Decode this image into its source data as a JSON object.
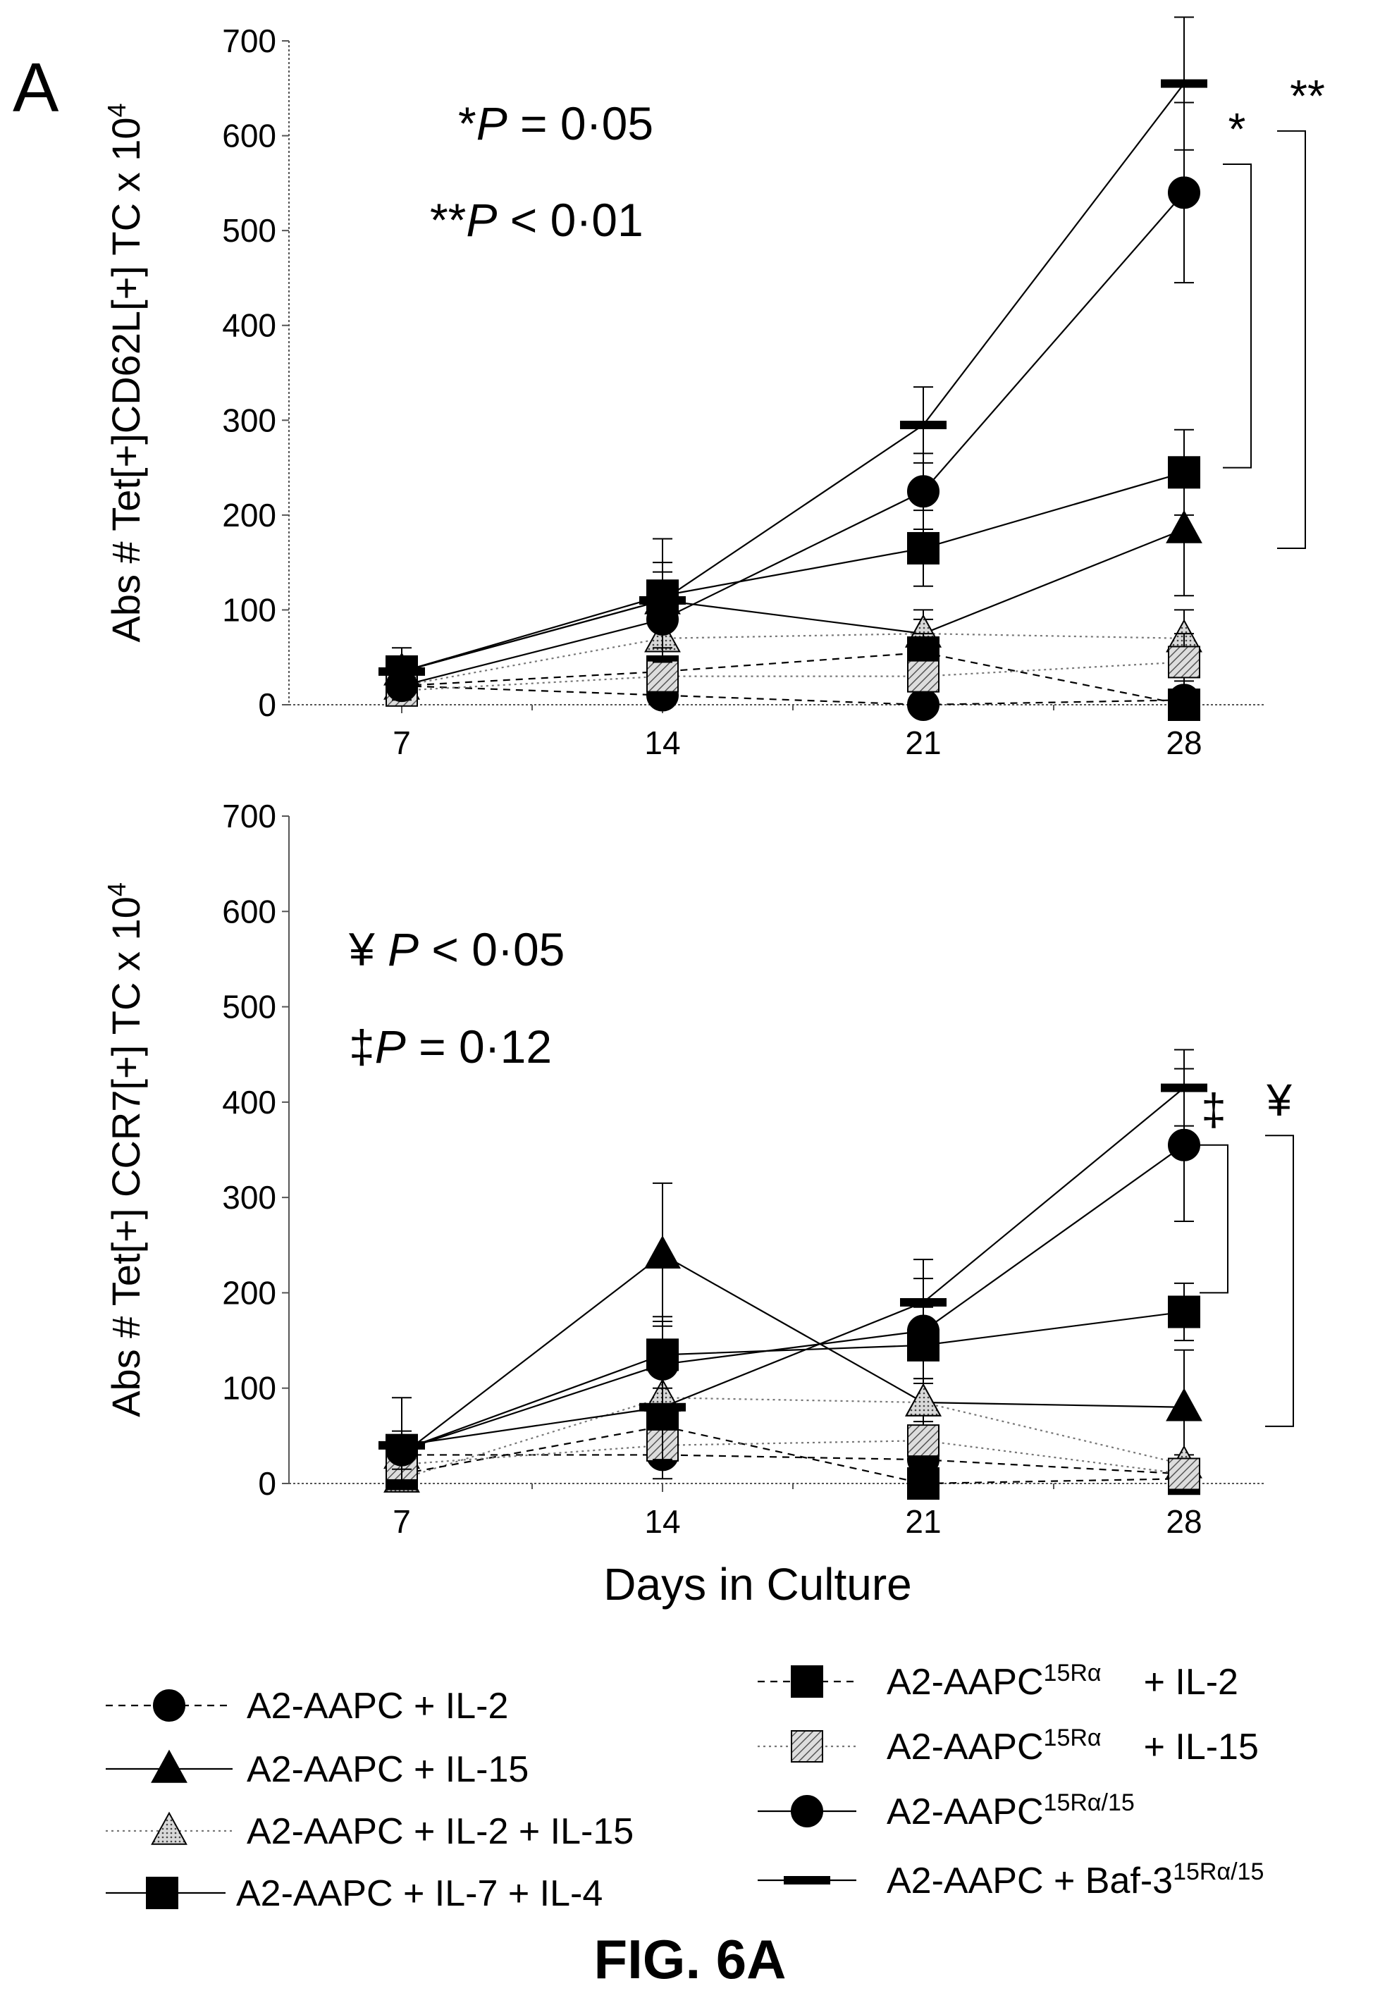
{
  "panel_letter": "A",
  "figure_label": "FIG. 6A",
  "styles": {
    "a2_il2": {
      "dash": "10,8",
      "marker": "circle",
      "fill": "#000000",
      "stroke": "#000000"
    },
    "a2_il15": {
      "dash": "",
      "marker": "triangle",
      "fill": "#000000",
      "stroke": "#000000"
    },
    "a2_il2_il15": {
      "dash": "3,5",
      "marker": "triangle",
      "fill": "pat-dots",
      "stroke": "#555555"
    },
    "a2_il7_il4": {
      "dash": "",
      "marker": "square",
      "fill": "#000000",
      "stroke": "#000000"
    },
    "r_il2": {
      "dash": "10,8",
      "marker": "square",
      "fill": "#000000",
      "stroke": "#000000"
    },
    "r_il15": {
      "dash": "3,5",
      "marker": "square",
      "fill": "pat-hatch",
      "stroke": "#555555"
    },
    "r15": {
      "dash": "",
      "marker": "circle",
      "fill": "#000000",
      "stroke": "#000000"
    },
    "baf3": {
      "dash": "",
      "marker": "dash",
      "fill": "#000000",
      "stroke": "#000000"
    }
  },
  "legend": [
    {
      "key": "a2_il2",
      "label": "A2-AAPC + IL-2",
      "sup": "",
      "tail": ""
    },
    {
      "key": "a2_il15",
      "label": "A2-AAPC + IL-15",
      "sup": "",
      "tail": ""
    },
    {
      "key": "a2_il2_il15",
      "label": "A2-AAPC + IL-2 + IL-15",
      "sup": "",
      "tail": ""
    },
    {
      "key": "a2_il7_il4",
      "label": "A2-AAPC + IL-7 + IL-4",
      "sup": "",
      "tail": ""
    },
    {
      "key": "r_il2",
      "label": "A2-AAPC",
      "sup": "15Rα",
      "tail": "+ IL-2"
    },
    {
      "key": "r_il15",
      "label": "A2-AAPC",
      "sup": "15Rα",
      "tail": "+ IL-15"
    },
    {
      "key": "r15",
      "label": "A2-AAPC",
      "sup": "15Rα/15",
      "tail": ""
    },
    {
      "key": "baf3",
      "label": "A2-AAPC + Baf-3",
      "sup": "15Rα/15",
      "tail": ""
    }
  ],
  "chart_data": [
    {
      "type": "line",
      "ylabel": "Abs # Tet[+]CD62L[+] TC x 10",
      "ylabel_sup": "4",
      "xlabel": "",
      "ylim": [
        0,
        700
      ],
      "yticks": [
        0,
        100,
        200,
        300,
        400,
        500,
        600,
        700
      ],
      "x": [
        7,
        14,
        21,
        28
      ],
      "annotations": [
        {
          "line": 1,
          "star": "*",
          "text": "P = 0·05"
        },
        {
          "line": 2,
          "star": "**",
          "text": "P < 0·01"
        }
      ],
      "sig_brackets": [
        {
          "label": "*",
          "y_top": 570,
          "y_bottom": 250
        },
        {
          "label": "**",
          "y_top": 605,
          "y_bottom": 165
        }
      ],
      "series": [
        {
          "key": "a2_il2",
          "values": [
            20,
            10,
            0,
            5
          ],
          "err": [
            8,
            25,
            10,
            20
          ]
        },
        {
          "key": "a2_il15",
          "values": [
            35,
            110,
            75,
            185
          ],
          "err": [
            15,
            30,
            25,
            70
          ]
        },
        {
          "key": "a2_il2_il15",
          "values": [
            20,
            70,
            75,
            70
          ],
          "err": [
            10,
            20,
            15,
            30
          ]
        },
        {
          "key": "a2_il7_il4",
          "values": [
            35,
            115,
            165,
            245
          ],
          "err": [
            10,
            35,
            40,
            45
          ]
        },
        {
          "key": "r_il2",
          "values": [
            20,
            35,
            55,
            0
          ],
          "err": [
            10,
            15,
            20,
            10
          ]
        },
        {
          "key": "r_il15",
          "values": [
            15,
            30,
            30,
            45
          ],
          "err": [
            10,
            15,
            15,
            30
          ]
        },
        {
          "key": "r15",
          "values": [
            20,
            90,
            225,
            540
          ],
          "err": [
            15,
            30,
            40,
            95
          ]
        },
        {
          "key": "baf3",
          "values": [
            35,
            110,
            295,
            655
          ],
          "err": [
            25,
            65,
            40,
            70
          ]
        }
      ]
    },
    {
      "type": "line",
      "ylabel": "Abs # Tet[+] CCR7[+] TC x 10",
      "ylabel_sup": "4",
      "xlabel": "Days in Culture",
      "ylim": [
        0,
        700
      ],
      "yticks": [
        0,
        100,
        200,
        300,
        400,
        500,
        600,
        700
      ],
      "x": [
        7,
        14,
        21,
        28
      ],
      "annotations": [
        {
          "line": 1,
          "star": "¥ ",
          "text": "P < 0·05"
        },
        {
          "line": 2,
          "star": "‡",
          "text": "P = 0·12"
        }
      ],
      "sig_brackets": [
        {
          "label": "‡",
          "y_top": 355,
          "y_bottom": 200
        },
        {
          "label": "¥",
          "y_top": 365,
          "y_bottom": 60
        }
      ],
      "series": [
        {
          "key": "a2_il2",
          "values": [
            30,
            30,
            25,
            10
          ],
          "err": [
            10,
            25,
            15,
            10
          ]
        },
        {
          "key": "a2_il15",
          "values": [
            30,
            240,
            85,
            80
          ],
          "err": [
            15,
            75,
            25,
            60
          ]
        },
        {
          "key": "a2_il2_il15",
          "values": [
            5,
            90,
            85,
            20
          ],
          "err": [
            10,
            25,
            25,
            10
          ]
        },
        {
          "key": "a2_il7_il4",
          "values": [
            35,
            135,
            145,
            180
          ],
          "err": [
            15,
            35,
            40,
            30
          ]
        },
        {
          "key": "r_il2",
          "values": [
            10,
            60,
            0,
            5
          ],
          "err": [
            10,
            20,
            10,
            10
          ]
        },
        {
          "key": "r_il15",
          "values": [
            20,
            40,
            45,
            10
          ],
          "err": [
            10,
            20,
            20,
            10
          ]
        },
        {
          "key": "r15",
          "values": [
            35,
            125,
            160,
            355
          ],
          "err": [
            20,
            50,
            55,
            80
          ]
        },
        {
          "key": "baf3",
          "values": [
            40,
            80,
            190,
            415
          ],
          "err": [
            50,
            55,
            45,
            40
          ]
        }
      ]
    }
  ]
}
